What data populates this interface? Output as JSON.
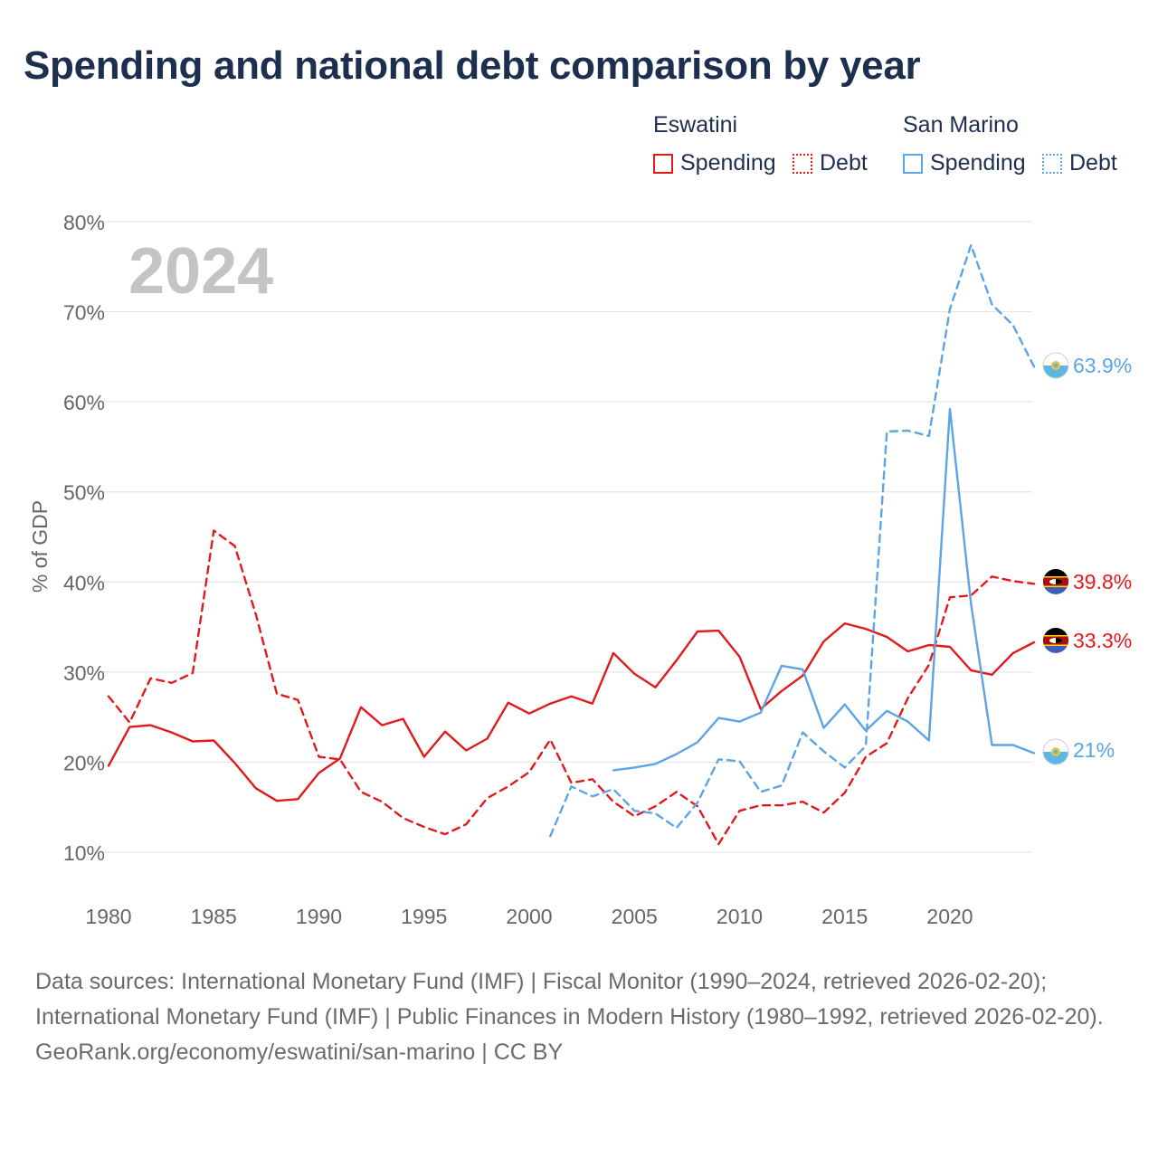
{
  "title": "Spending and national debt comparison by year",
  "legend": {
    "groups": [
      {
        "country": "Eswatini",
        "color": "#e31a1c",
        "items": [
          {
            "label": "Spending",
            "style": "solid"
          },
          {
            "label": "Debt",
            "style": "dotted"
          }
        ]
      },
      {
        "country": "San Marino",
        "color": "#5ba4e5",
        "items": [
          {
            "label": "Spending",
            "style": "solid"
          },
          {
            "label": "Debt",
            "style": "dotted"
          }
        ]
      }
    ]
  },
  "year_label": "2024",
  "end_labels": {
    "sm_debt": "63.9%",
    "esw_debt": "39.8%",
    "esw_spending": "33.3%",
    "sm_spending": "21%"
  },
  "footer": {
    "sources": "Data sources: International Monetary Fund (IMF) | Fiscal Monitor (1990–2024, retrieved 2026-02-20); International Monetary Fund (IMF) | Public Finances in Modern History (1980–1992, retrieved 2026-02-20).",
    "attribution": "GeoRank.org/economy/eswatini/san-marino | CC BY"
  },
  "chart_data": {
    "type": "line",
    "title": "Spending and national debt comparison by year",
    "xlabel": "",
    "ylabel": "% of GDP",
    "xlim": [
      1980,
      2024
    ],
    "ylim": [
      10,
      80
    ],
    "x_ticks": [
      1980,
      1985,
      1990,
      1995,
      2000,
      2005,
      2010,
      2015,
      2020
    ],
    "x_tick_labels": [
      "1980",
      "1985",
      "1990",
      "1995",
      "2000",
      "2005",
      "2010",
      "2015",
      "2020"
    ],
    "y_ticks": [
      10,
      20,
      30,
      40,
      50,
      60,
      70,
      80
    ],
    "y_tick_labels": [
      "10%",
      "20%",
      "30%",
      "40%",
      "50%",
      "60%",
      "70%",
      "80%"
    ],
    "grid": true,
    "series": [
      {
        "name": "Eswatini Spending",
        "country": "Eswatini",
        "metric": "Spending",
        "dash": "solid",
        "color": "#e31a1c",
        "x": [
          1980,
          1981,
          1982,
          1983,
          1984,
          1985,
          1986,
          1987,
          1988,
          1989,
          1990,
          1991,
          1992,
          1993,
          1994,
          1995,
          1996,
          1997,
          1998,
          1999,
          2000,
          2001,
          2002,
          2003,
          2004,
          2005,
          2006,
          2007,
          2008,
          2009,
          2010,
          2011,
          2012,
          2013,
          2014,
          2015,
          2016,
          2017,
          2018,
          2019,
          2020,
          2021,
          2022,
          2023,
          2024
        ],
        "values": [
          19.6,
          23.9,
          24.1,
          23.3,
          22.3,
          22.4,
          19.9,
          17.1,
          15.7,
          15.9,
          18.8,
          20.4,
          26.1,
          24.1,
          24.8,
          20.6,
          23.4,
          21.3,
          22.6,
          26.6,
          25.4,
          26.5,
          27.3,
          26.5,
          32.1,
          29.8,
          28.3,
          31.3,
          34.5,
          34.6,
          31.7,
          25.9,
          27.9,
          29.6,
          33.4,
          35.4,
          34.8,
          33.9,
          32.3,
          33.0,
          32.8,
          30.2,
          29.7,
          32.1,
          33.3
        ]
      },
      {
        "name": "Eswatini Debt",
        "country": "Eswatini",
        "metric": "Debt",
        "dash": "dashed",
        "color": "#e31a1c",
        "x": [
          1980,
          1981,
          1982,
          1983,
          1984,
          1985,
          1986,
          1987,
          1988,
          1989,
          1990,
          1991,
          1992,
          1993,
          1994,
          1995,
          1996,
          1997,
          1998,
          1999,
          2000,
          2001,
          2002,
          2003,
          2004,
          2005,
          2006,
          2007,
          2008,
          2009,
          2010,
          2011,
          2012,
          2013,
          2014,
          2015,
          2016,
          2017,
          2018,
          2019,
          2020,
          2021,
          2022,
          2023,
          2024
        ],
        "values": [
          27.3,
          24.4,
          29.3,
          28.8,
          29.9,
          45.7,
          44.0,
          36.4,
          27.6,
          26.9,
          20.6,
          20.3,
          16.7,
          15.6,
          13.8,
          12.8,
          12.0,
          13.1,
          16.0,
          17.3,
          18.9,
          22.5,
          17.7,
          18.1,
          15.6,
          14.0,
          15.1,
          16.7,
          15.1,
          10.9,
          14.6,
          15.2,
          15.2,
          15.6,
          14.4,
          16.6,
          20.6,
          22.1,
          27.1,
          30.8,
          38.3,
          38.5,
          40.6,
          40.1,
          39.8
        ]
      },
      {
        "name": "San Marino Spending",
        "country": "San Marino",
        "metric": "Spending",
        "dash": "solid",
        "color": "#5ba4e5",
        "x": [
          2004,
          2005,
          2006,
          2007,
          2008,
          2009,
          2010,
          2011,
          2012,
          2013,
          2014,
          2015,
          2016,
          2017,
          2018,
          2019,
          2020,
          2021,
          2022,
          2023,
          2024
        ],
        "values": [
          19.1,
          19.4,
          19.8,
          20.9,
          22.2,
          24.9,
          24.5,
          25.5,
          30.7,
          30.3,
          23.8,
          26.4,
          23.5,
          25.7,
          24.5,
          22.4,
          59.2,
          37.6,
          21.9,
          21.9,
          21.0
        ]
      },
      {
        "name": "San Marino Debt",
        "country": "San Marino",
        "metric": "Debt",
        "dash": "dashed",
        "color": "#5ba4e5",
        "x": [
          2001,
          2002,
          2003,
          2004,
          2005,
          2006,
          2007,
          2008,
          2009,
          2010,
          2011,
          2012,
          2013,
          2014,
          2015,
          2016,
          2017,
          2018,
          2019,
          2020,
          2021,
          2022,
          2023,
          2024
        ],
        "values": [
          11.8,
          17.3,
          16.2,
          17.0,
          14.6,
          14.3,
          12.7,
          15.5,
          20.3,
          20.1,
          16.7,
          17.4,
          23.3,
          21.2,
          19.4,
          21.8,
          56.7,
          56.8,
          56.2,
          70.3,
          77.4,
          70.8,
          68.5,
          63.9
        ]
      }
    ]
  }
}
